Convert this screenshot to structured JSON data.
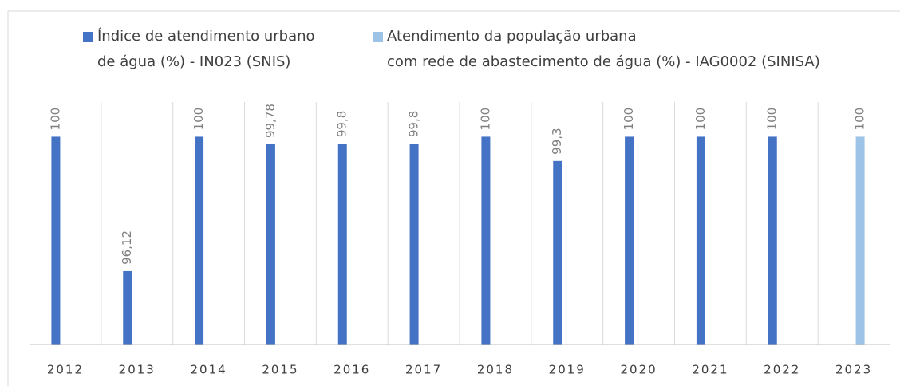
{
  "chart_data": {
    "type": "bar",
    "categories": [
      "2012",
      "2013",
      "2014",
      "2015",
      "2016",
      "2017",
      "2018",
      "2019",
      "2020",
      "2021",
      "2022",
      "2023"
    ],
    "series": [
      {
        "name": "Índice de atendimento urbano\nde água (%) - IN023 (SNIS)",
        "color": "#4472c4",
        "values": [
          100,
          96.12,
          100,
          99.78,
          99.8,
          99.8,
          100,
          99.3,
          100,
          100,
          100,
          null
        ],
        "value_labels": [
          "100",
          "96,12",
          "100",
          "99,78",
          "99,8",
          "99,8",
          "100",
          "99,3",
          "100",
          "100",
          "100",
          null
        ]
      },
      {
        "name": "Atendimento da população urbana\ncom rede de abastecimento de água (%) - IAG0002 (SINISA)",
        "color": "#9dc3e6",
        "values": [
          null,
          null,
          null,
          null,
          null,
          null,
          null,
          null,
          null,
          null,
          null,
          100
        ],
        "value_labels": [
          null,
          null,
          null,
          null,
          null,
          null,
          null,
          null,
          null,
          null,
          null,
          "100"
        ]
      }
    ],
    "ylim": [
      94,
      101
    ]
  }
}
